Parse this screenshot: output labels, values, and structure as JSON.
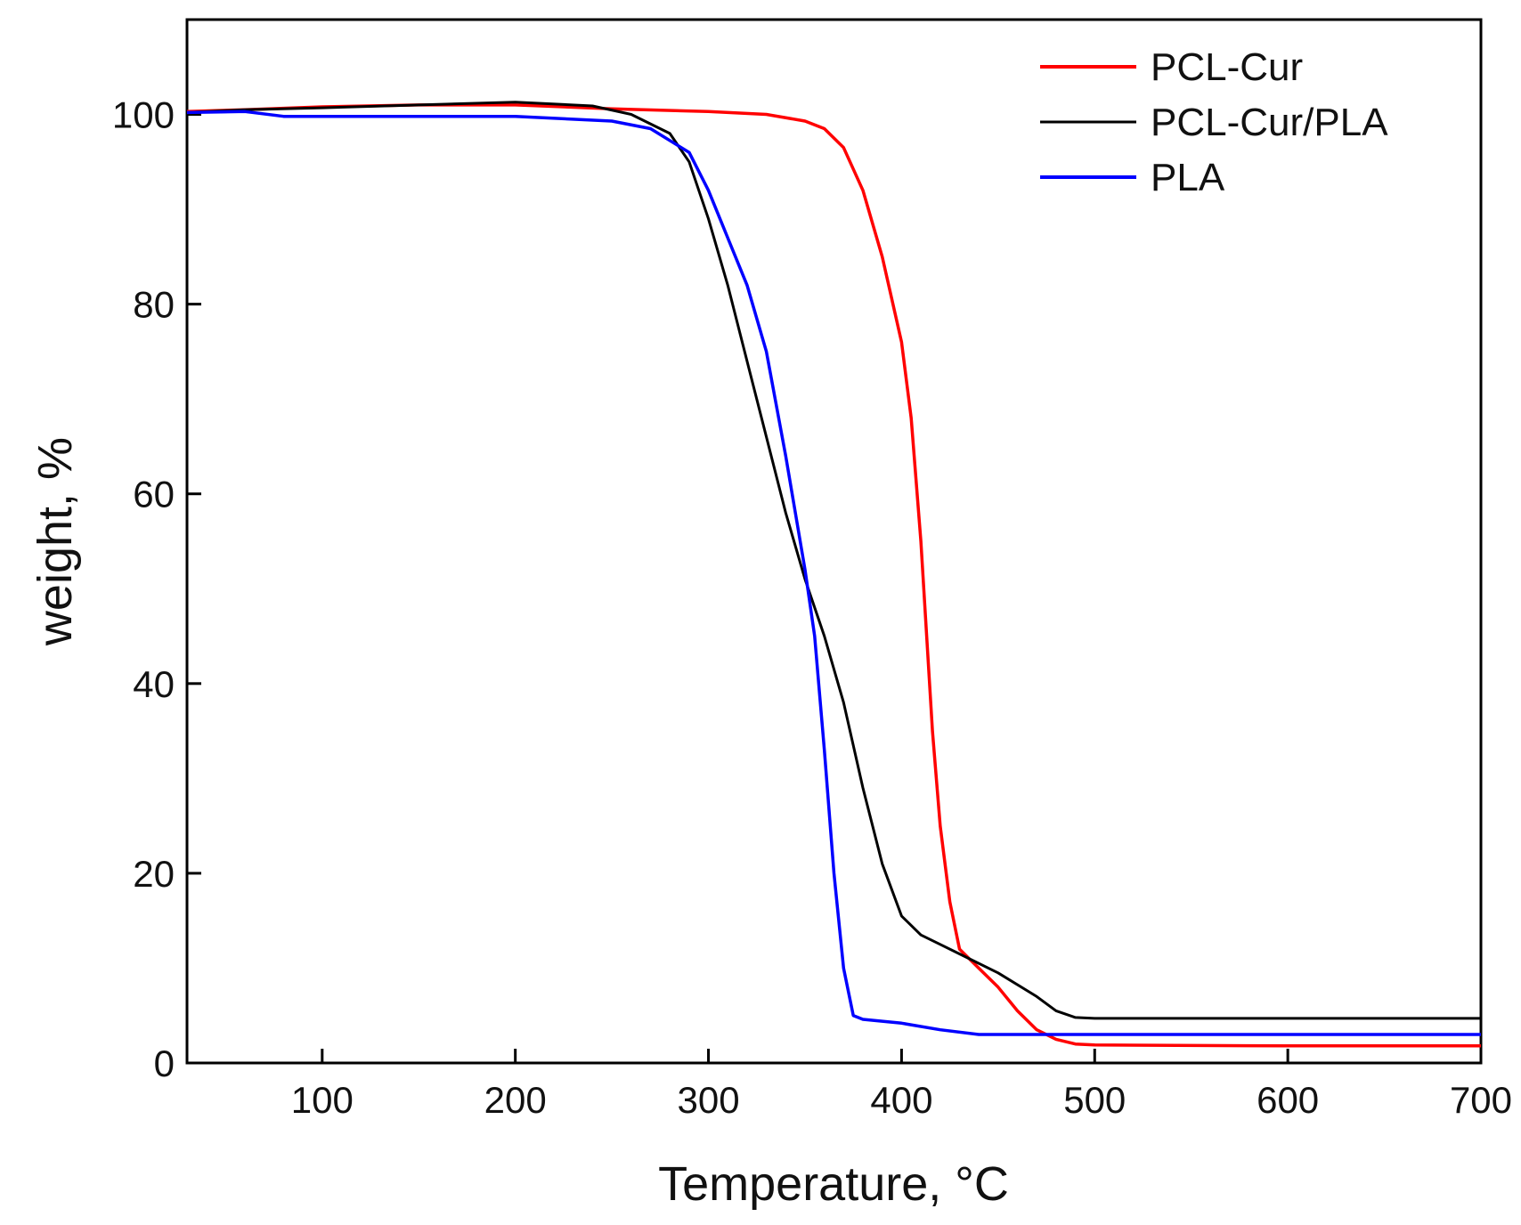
{
  "chart_data": {
    "type": "line",
    "title": "",
    "xlabel": "Temperature, °C",
    "ylabel": "weight, %",
    "xlim": [
      30,
      700
    ],
    "ylim": [
      0,
      110
    ],
    "xticks": [
      100,
      200,
      300,
      400,
      500,
      600,
      700
    ],
    "yticks": [
      0,
      20,
      40,
      60,
      80,
      100
    ],
    "legend_position": "top-right",
    "series": [
      {
        "name": "PCL-Cur",
        "color": "#ff0000",
        "points": [
          [
            30,
            100.3
          ],
          [
            60,
            100.5
          ],
          [
            100,
            100.8
          ],
          [
            150,
            101.0
          ],
          [
            200,
            101.0
          ],
          [
            250,
            100.6
          ],
          [
            300,
            100.3
          ],
          [
            330,
            100.0
          ],
          [
            350,
            99.3
          ],
          [
            360,
            98.5
          ],
          [
            370,
            96.5
          ],
          [
            380,
            92.0
          ],
          [
            390,
            85.0
          ],
          [
            400,
            76.0
          ],
          [
            405,
            68.0
          ],
          [
            410,
            55.0
          ],
          [
            413,
            45.0
          ],
          [
            416,
            35.0
          ],
          [
            420,
            25.0
          ],
          [
            425,
            17.0
          ],
          [
            430,
            12.0
          ],
          [
            440,
            10.0
          ],
          [
            450,
            8.0
          ],
          [
            460,
            5.5
          ],
          [
            470,
            3.5
          ],
          [
            480,
            2.5
          ],
          [
            490,
            2.0
          ],
          [
            500,
            1.9
          ],
          [
            600,
            1.8
          ],
          [
            700,
            1.8
          ]
        ]
      },
      {
        "name": "PCL-Cur/PLA",
        "color": "#000000",
        "points": [
          [
            30,
            100.2
          ],
          [
            60,
            100.5
          ],
          [
            100,
            100.7
          ],
          [
            150,
            101.0
          ],
          [
            200,
            101.3
          ],
          [
            240,
            100.9
          ],
          [
            260,
            100.0
          ],
          [
            280,
            98.0
          ],
          [
            290,
            95.0
          ],
          [
            300,
            89.0
          ],
          [
            310,
            82.0
          ],
          [
            320,
            74.0
          ],
          [
            330,
            66.0
          ],
          [
            340,
            58.0
          ],
          [
            350,
            51.0
          ],
          [
            360,
            45.0
          ],
          [
            370,
            38.0
          ],
          [
            380,
            29.0
          ],
          [
            390,
            21.0
          ],
          [
            400,
            15.5
          ],
          [
            410,
            13.5
          ],
          [
            420,
            12.5
          ],
          [
            430,
            11.5
          ],
          [
            450,
            9.5
          ],
          [
            470,
            7.0
          ],
          [
            480,
            5.5
          ],
          [
            490,
            4.8
          ],
          [
            500,
            4.7
          ],
          [
            600,
            4.7
          ],
          [
            700,
            4.7
          ]
        ]
      },
      {
        "name": "PLA",
        "color": "#0000ff",
        "points": [
          [
            30,
            100.2
          ],
          [
            60,
            100.3
          ],
          [
            80,
            99.8
          ],
          [
            100,
            99.8
          ],
          [
            150,
            99.8
          ],
          [
            200,
            99.8
          ],
          [
            250,
            99.3
          ],
          [
            270,
            98.5
          ],
          [
            290,
            96.0
          ],
          [
            300,
            92.0
          ],
          [
            310,
            87.0
          ],
          [
            320,
            82.0
          ],
          [
            330,
            75.0
          ],
          [
            340,
            64.0
          ],
          [
            350,
            52.0
          ],
          [
            355,
            45.0
          ],
          [
            360,
            33.0
          ],
          [
            365,
            20.0
          ],
          [
            370,
            10.0
          ],
          [
            375,
            5.0
          ],
          [
            380,
            4.6
          ],
          [
            400,
            4.2
          ],
          [
            420,
            3.5
          ],
          [
            440,
            3.0
          ],
          [
            500,
            3.0
          ],
          [
            600,
            3.0
          ],
          [
            700,
            3.0
          ]
        ]
      }
    ]
  }
}
